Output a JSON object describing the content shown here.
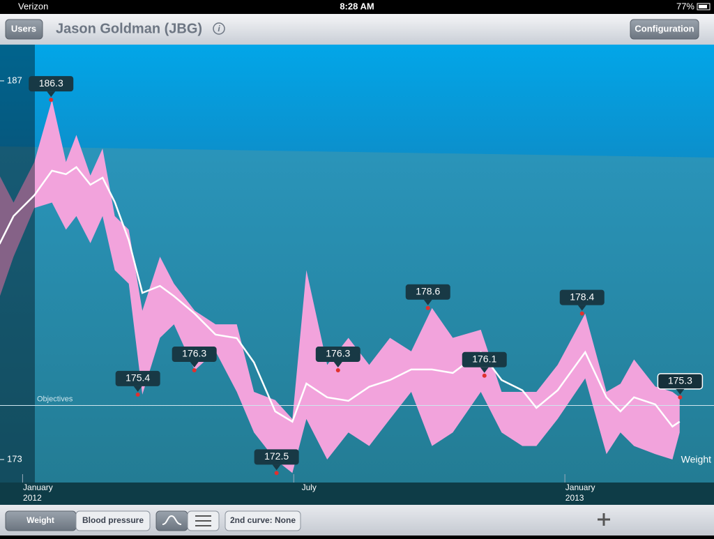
{
  "status_bar": {
    "carrier": "Verizon",
    "time": "8:28 AM",
    "battery": "77%"
  },
  "nav_bar": {
    "left_button": "Users",
    "title": "Jason Goldman (JBG)",
    "right_button": "Configuration"
  },
  "chart_data": {
    "type": "line",
    "series": [
      {
        "name": "Weight",
        "color": "#ffffff",
        "x": [
          -0.51,
          -0.2,
          0.26,
          0.65,
          0.96,
          1.19,
          1.5,
          1.77,
          2.04,
          2.35,
          2.65,
          3.04,
          3.35,
          3.81,
          4.27,
          4.74,
          5.12,
          5.59,
          5.97,
          6.28,
          6.74,
          7.21,
          7.67,
          8.13,
          8.6,
          9.06,
          9.52,
          10.14,
          10.6,
          11.06,
          11.37,
          11.84,
          12.45,
          12.92,
          13.23,
          13.53,
          14.0,
          14.38,
          14.54
        ],
        "values": [
          180.97,
          182.0,
          182.77,
          183.68,
          183.55,
          183.81,
          183.16,
          183.42,
          182.52,
          181.1,
          179.16,
          179.42,
          179.04,
          178.39,
          177.62,
          177.49,
          176.59,
          174.78,
          174.4,
          175.81,
          175.3,
          175.17,
          175.69,
          175.94,
          176.33,
          176.33,
          176.2,
          176.97,
          175.94,
          175.56,
          174.91,
          175.56,
          176.97,
          175.3,
          174.78,
          175.3,
          175.04,
          174.22,
          174.4
        ]
      }
    ],
    "band": {
      "color": "#f2a3dc",
      "upper": [
        183.5,
        182.5,
        184.0,
        186.3,
        184.0,
        185.0,
        183.5,
        184.5,
        182.0,
        181.5,
        178.5,
        180.5,
        179.5,
        178.5,
        178.0,
        178.0,
        175.5,
        175.2,
        174.5,
        180.0,
        176.5,
        177.5,
        176.5,
        177.5,
        177.0,
        178.6,
        177.5,
        177.8,
        175.5,
        175.5,
        175.5,
        176.5,
        178.4,
        175.5,
        175.8,
        176.7,
        175.7,
        175.5,
        175.3
      ],
      "lower": [
        179.0,
        180.5,
        182.3,
        182.5,
        181.5,
        182.0,
        181.0,
        182.0,
        180.0,
        179.5,
        175.4,
        177.5,
        178.0,
        176.3,
        177.0,
        175.5,
        174.0,
        173.0,
        172.5,
        174.5,
        173.0,
        174.0,
        173.5,
        174.5,
        175.5,
        173.5,
        174.0,
        175.5,
        174.0,
        173.5,
        173.5,
        174.5,
        176.0,
        173.2,
        174.0,
        173.5,
        173.2,
        173.0,
        174.0
      ]
    },
    "annotations": [
      {
        "x": 0.63,
        "value": 186.3
      },
      {
        "x": 2.55,
        "value": 175.4
      },
      {
        "x": 3.8,
        "value": 176.3
      },
      {
        "x": 5.62,
        "value": 172.5
      },
      {
        "x": 6.98,
        "value": 176.3
      },
      {
        "x": 8.97,
        "value": 178.6
      },
      {
        "x": 10.22,
        "value": 176.1
      },
      {
        "x": 12.38,
        "value": 178.4
      },
      {
        "x": 14.55,
        "value": 175.3
      }
    ],
    "objective": {
      "label": "Objectives",
      "value": 175
    },
    "xlim": [
      -0.5,
      15.3
    ],
    "ylim": [
      172.15,
      188.34
    ],
    "xticks": [
      {
        "value": 0,
        "label": "January"
      },
      {
        "value": 6,
        "label": "July"
      },
      {
        "value": 12,
        "label": "January"
      }
    ],
    "xtick_years": [
      {
        "value": 0,
        "label": "2012"
      },
      {
        "value": 12,
        "label": "2013"
      }
    ],
    "yticks": [
      187,
      173
    ]
  },
  "toolbar": {
    "segments": [
      "Weight",
      "Blood pressure"
    ],
    "second_curve": "2nd curve: None"
  }
}
